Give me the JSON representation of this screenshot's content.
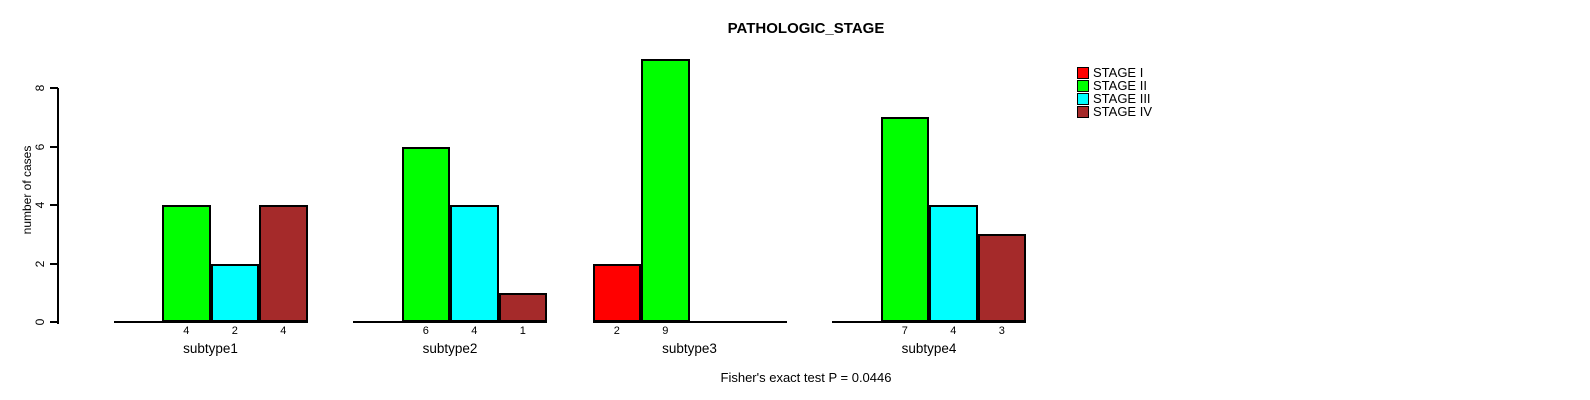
{
  "chart_data": {
    "type": "bar",
    "title": "PATHOLOGIC_STAGE",
    "ylabel": "number of cases",
    "yticks": [
      0,
      2,
      4,
      6,
      8
    ],
    "ylim": [
      0,
      9
    ],
    "grid": false,
    "legend_position": "top-right",
    "categories": [
      "subtype1",
      "subtype2",
      "subtype3",
      "subtype4"
    ],
    "series": [
      {
        "name": "STAGE I",
        "color": "#FF0000",
        "values": [
          0,
          0,
          2,
          0
        ]
      },
      {
        "name": "STAGE II",
        "color": "#00FF00",
        "values": [
          4,
          6,
          9,
          7
        ]
      },
      {
        "name": "STAGE III",
        "color": "#00FFFF",
        "values": [
          2,
          4,
          0,
          4
        ]
      },
      {
        "name": "STAGE IV",
        "color": "#A52A2A",
        "values": [
          4,
          1,
          0,
          3
        ]
      }
    ],
    "annotation": "Fisher's exact test P = 0.0446"
  }
}
